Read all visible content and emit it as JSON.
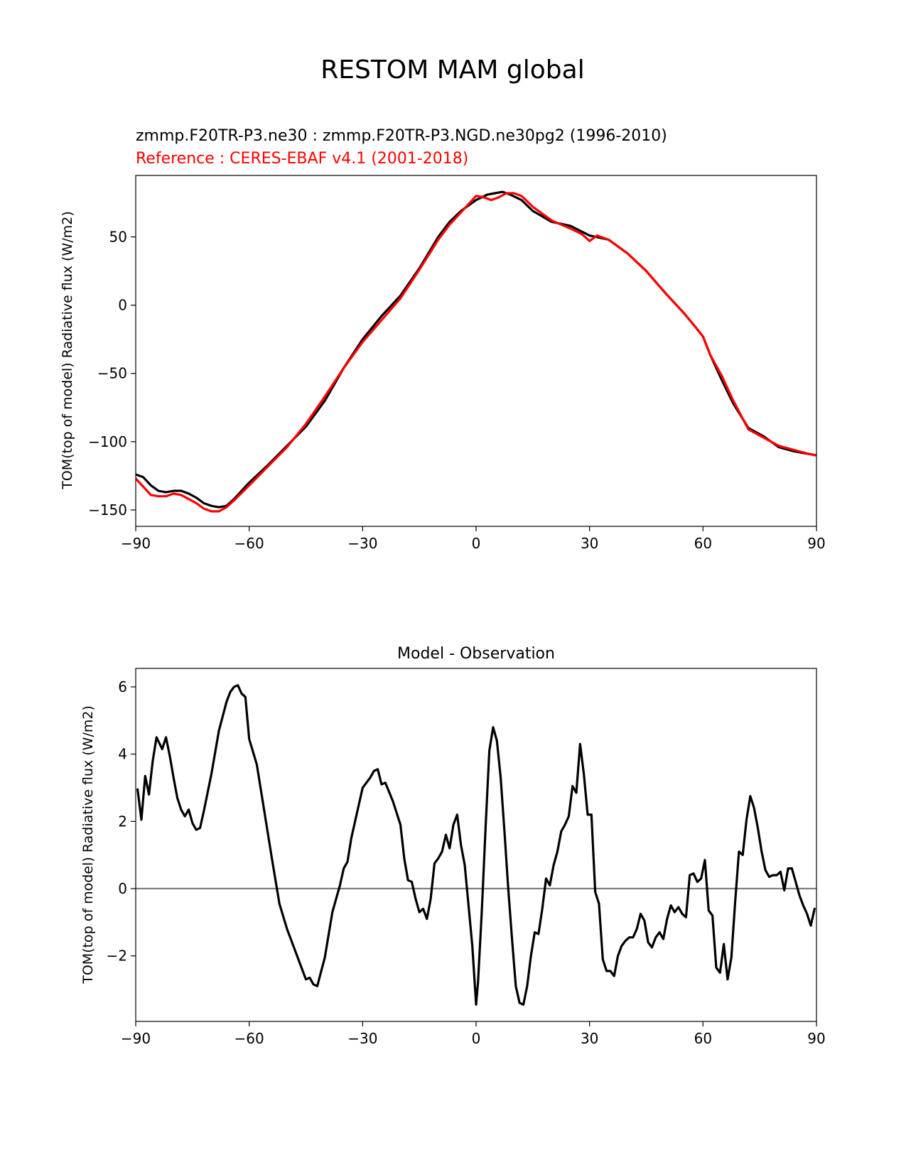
{
  "figure": {
    "suptitle": "RESTOM MAM global"
  },
  "colors": {
    "model": "#000000",
    "reference": "#ff0000",
    "zero_line": "#808080",
    "axes": "#000000",
    "background": "#ffffff"
  },
  "chart_data": [
    {
      "type": "line",
      "title": "zmmp.F20TR-P3.ne30 : zmmp.F20TR-P3.NGD.ne30pg2 (1996-2010)",
      "subtitle": "Reference : CERES-EBAF v4.1 (2001-2018)",
      "xlabel": "",
      "ylabel": "TOM(top of model) Radiative flux (W/m2)",
      "xlim": [
        -90,
        90
      ],
      "ylim": [
        -162,
        95
      ],
      "xticks": [
        -90,
        -60,
        -30,
        0,
        30,
        60,
        90
      ],
      "xtick_labels": [
        "−90",
        "−60",
        "−30",
        "0",
        "30",
        "60",
        "90"
      ],
      "yticks": [
        -150,
        -100,
        -50,
        0,
        50
      ],
      "ytick_labels": [
        "−150",
        "−100",
        "−50",
        "0",
        "50"
      ],
      "grid": false,
      "series": [
        {
          "role": "model",
          "color": "#000000",
          "x": [
            -90,
            -88,
            -86,
            -84,
            -82,
            -80,
            -78,
            -76,
            -74,
            -72,
            -70,
            -68,
            -66,
            -64,
            -60,
            -55,
            -50,
            -45,
            -40,
            -35,
            -30,
            -25,
            -20,
            -15,
            -10,
            -7,
            -4,
            0,
            3,
            5,
            7,
            9,
            12,
            15,
            20,
            25,
            30,
            35,
            40,
            45,
            50,
            55,
            58,
            60,
            62,
            65,
            68,
            72,
            76,
            80,
            84,
            88,
            90
          ],
          "y": [
            -124,
            -126,
            -132,
            -136,
            -137,
            -136,
            -136,
            -138,
            -141,
            -145,
            -147,
            -148,
            -147,
            -142,
            -130,
            -117,
            -103,
            -89,
            -70,
            -46,
            -25,
            -8,
            7,
            27,
            50,
            61,
            69,
            77,
            81,
            82,
            83,
            81,
            77,
            69,
            61,
            58,
            51,
            48,
            38,
            25,
            9,
            -6,
            -16,
            -23,
            -37,
            -55,
            -72,
            -90,
            -96,
            -104,
            -107,
            -109,
            -110
          ]
        },
        {
          "role": "reference",
          "color": "#ff0000",
          "x": [
            -90,
            -88,
            -86,
            -84,
            -82,
            -80,
            -78,
            -76,
            -74,
            -72,
            -70,
            -68,
            -66,
            -64,
            -60,
            -55,
            -50,
            -45,
            -40,
            -35,
            -30,
            -25,
            -20,
            -15,
            -10,
            -7,
            -4,
            0,
            2,
            4,
            6,
            8,
            10,
            12,
            15,
            20,
            25,
            28,
            30,
            32,
            35,
            40,
            45,
            50,
            55,
            58,
            60,
            62,
            65,
            68,
            72,
            76,
            80,
            84,
            88,
            90
          ],
          "y": [
            -127,
            -133,
            -139,
            -140,
            -140,
            -138,
            -139,
            -142,
            -145,
            -149,
            -151,
            -151,
            -148,
            -143,
            -132,
            -118,
            -104,
            -87,
            -67,
            -46,
            -27,
            -11,
            5,
            26,
            48,
            59,
            68,
            80,
            79,
            77,
            79,
            82,
            82,
            80,
            72,
            62,
            56,
            52,
            47,
            51,
            48,
            38,
            25,
            9,
            -6,
            -16,
            -23,
            -37,
            -52,
            -70,
            -91,
            -97,
            -103,
            -106,
            -109,
            -110
          ]
        }
      ]
    },
    {
      "type": "line",
      "title": "Model - Observation",
      "xlabel": "",
      "ylabel": "TOM(top of model) Radiative flux (W/m2)",
      "xlim": [
        -90,
        90
      ],
      "ylim": [
        -3.95,
        6.55
      ],
      "xticks": [
        -90,
        -60,
        -30,
        0,
        30,
        60,
        90
      ],
      "xtick_labels": [
        "−90",
        "−60",
        "−30",
        "0",
        "30",
        "60",
        "90"
      ],
      "yticks": [
        -2,
        0,
        2,
        4,
        6
      ],
      "ytick_labels": [
        "−2",
        "0",
        "2",
        "4",
        "6"
      ],
      "grid": false,
      "reference_line": 0,
      "series": [
        {
          "role": "difference",
          "color": "#000000",
          "x": [
            -89.5,
            -88.5,
            -87.5,
            -86.5,
            -85.5,
            -84.5,
            -83,
            -82,
            -81,
            -80,
            -79,
            -78,
            -77,
            -76,
            -75,
            -74,
            -73,
            -72,
            -70,
            -68,
            -66,
            -65,
            -64,
            -63,
            -62,
            -61,
            -60,
            -58,
            -56,
            -54,
            -52,
            -50,
            -48,
            -46,
            -45,
            -44,
            -43,
            -42,
            -40,
            -38,
            -36,
            -35,
            -34,
            -33,
            -32,
            -31,
            -30,
            -28,
            -27,
            -26,
            -25,
            -24,
            -22,
            -20,
            -19,
            -18,
            -17,
            -16,
            -15,
            -14,
            -13,
            -12,
            -11,
            -10,
            -9,
            -8,
            -7,
            -6,
            -5,
            -4,
            -3,
            -2,
            -1,
            0,
            0.5,
            1.5,
            2.5,
            3.5,
            4.5,
            5.5,
            6.5,
            7.5,
            8.5,
            9.5,
            10.5,
            11.5,
            12.5,
            13.5,
            14.5,
            15.5,
            16.5,
            17.5,
            18.5,
            19.5,
            20.5,
            21.5,
            22.5,
            23.5,
            24.5,
            25.5,
            26.5,
            27.5,
            28.5,
            29.5,
            30.5,
            31.5,
            32.5,
            33.5,
            34.5,
            35.5,
            36.5,
            37.5,
            38.5,
            39.5,
            40.5,
            41.5,
            42.5,
            43.5,
            44.5,
            45.5,
            46.5,
            47.5,
            48.5,
            49.5,
            50.5,
            51.5,
            52.5,
            53.5,
            54.5,
            55.5,
            56.5,
            57.5,
            58.5,
            59.5,
            60.5,
            61.5,
            62.5,
            63.5,
            64.5,
            65.5,
            66.5,
            67.5,
            68.5,
            69.5,
            70.5,
            71.5,
            72.5,
            73.5,
            74.5,
            75.5,
            76.5,
            77.5,
            78.5,
            79.5,
            80.5,
            81.5,
            82.5,
            83.5,
            84.5,
            85.5,
            86.5,
            87.5,
            88.5,
            89.5
          ],
          "y": [
            2.95,
            2.05,
            3.35,
            2.8,
            3.8,
            4.5,
            4.15,
            4.5,
            3.95,
            3.3,
            2.7,
            2.35,
            2.15,
            2.35,
            1.95,
            1.75,
            1.8,
            2.3,
            3.4,
            4.7,
            5.55,
            5.85,
            6.0,
            6.05,
            5.8,
            5.7,
            4.45,
            3.7,
            2.3,
            0.9,
            -0.45,
            -1.2,
            -1.8,
            -2.4,
            -2.7,
            -2.65,
            -2.85,
            -2.9,
            -2.05,
            -0.7,
            0.1,
            0.6,
            0.8,
            1.5,
            2.0,
            2.5,
            3.0,
            3.3,
            3.5,
            3.55,
            3.1,
            3.15,
            2.6,
            1.9,
            0.9,
            0.25,
            0.2,
            -0.3,
            -0.7,
            -0.6,
            -0.9,
            -0.3,
            0.75,
            0.9,
            1.1,
            1.6,
            1.2,
            1.9,
            2.2,
            1.3,
            0.7,
            -0.5,
            -1.7,
            -3.45,
            -2.8,
            -0.7,
            1.8,
            4.1,
            4.8,
            4.4,
            3.3,
            1.7,
            0.0,
            -1.5,
            -2.9,
            -3.4,
            -3.45,
            -2.9,
            -2.0,
            -1.3,
            -1.35,
            -0.6,
            0.3,
            0.1,
            0.7,
            1.1,
            1.7,
            1.9,
            2.15,
            3.05,
            2.85,
            4.3,
            3.4,
            2.2,
            2.2,
            -0.1,
            -0.45,
            -2.1,
            -2.45,
            -2.45,
            -2.6,
            -2.0,
            -1.7,
            -1.55,
            -1.45,
            -1.45,
            -1.2,
            -0.75,
            -0.95,
            -1.6,
            -1.75,
            -1.45,
            -1.3,
            -1.5,
            -0.9,
            -0.5,
            -0.7,
            -0.55,
            -0.75,
            -0.85,
            0.4,
            0.45,
            0.2,
            0.3,
            0.85,
            -0.65,
            -0.8,
            -2.35,
            -2.5,
            -1.65,
            -2.7,
            -2.05,
            -0.4,
            1.1,
            1.0,
            2.05,
            2.75,
            2.4,
            1.8,
            1.1,
            0.55,
            0.35,
            0.4,
            0.4,
            0.5,
            -0.05,
            0.6,
            0.6,
            0.2,
            -0.2,
            -0.5,
            -0.75,
            -1.1,
            -0.6
          ]
        }
      ]
    }
  ]
}
